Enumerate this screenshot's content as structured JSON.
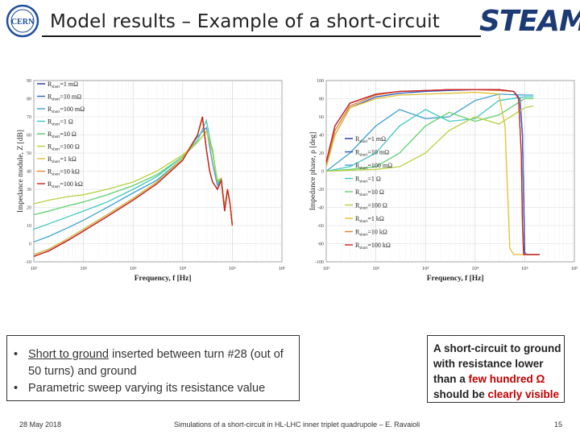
{
  "header": {
    "title": "Model results – Example of a short-circuit",
    "logo_left": "CERN",
    "logo_right": "STEAM"
  },
  "chart_data": [
    {
      "type": "line",
      "ylabel": "Impedance module, Z [dB]",
      "xlabel": "Frequency, f [Hz]",
      "xscale": "log",
      "xlim": [
        10,
        1000000
      ],
      "ylim": [
        -10,
        90
      ],
      "xticks": [
        "10¹",
        "10²",
        "10³",
        "10⁴",
        "10⁵",
        "10⁶"
      ],
      "yticks": [
        -10,
        0,
        10,
        20,
        30,
        40,
        50,
        60,
        70,
        80,
        90
      ],
      "grid": true,
      "legend": "top-left",
      "series": [
        {
          "name": "R_short=1 mΩ",
          "color": "#2030a0",
          "x": [
            10,
            20,
            50,
            100,
            300,
            1000,
            3000,
            10000,
            20000,
            25000,
            30000,
            35000,
            40000,
            50000,
            60000,
            70000,
            80000,
            90000,
            100000
          ],
          "y": [
            -7,
            -4,
            2,
            7,
            15,
            24,
            33,
            46,
            60,
            70,
            52,
            40,
            34,
            30,
            35,
            18,
            30,
            22,
            10
          ]
        },
        {
          "name": "R_short=10 mΩ",
          "color": "#3060c0",
          "x": [
            10,
            20,
            50,
            100,
            300,
            1000,
            3000,
            10000,
            20000,
            25000,
            30000,
            35000,
            40000,
            50000,
            60000,
            70000,
            80000,
            90000,
            100000
          ],
          "y": [
            -6,
            -3,
            3,
            8,
            16,
            25,
            34,
            47,
            60,
            70,
            52,
            40,
            34,
            30,
            35,
            18,
            30,
            22,
            10
          ]
        },
        {
          "name": "R_short=100 mΩ",
          "color": "#40a0d0",
          "x": [
            10,
            20,
            50,
            100,
            300,
            1000,
            3000,
            10000,
            20000,
            30000,
            40000,
            50000,
            60000,
            70000,
            80000,
            90000,
            100000
          ],
          "y": [
            1,
            4,
            9,
            13,
            20,
            28,
            35,
            47,
            59,
            64,
            44,
            32,
            35,
            20,
            30,
            22,
            10
          ]
        },
        {
          "name": "R_short=1 Ω",
          "color": "#40c8c0",
          "x": [
            10,
            20,
            50,
            100,
            300,
            1000,
            3000,
            10000,
            20000,
            30000,
            40000,
            50000,
            60000,
            70000,
            80000,
            90000,
            100000
          ],
          "y": [
            8,
            11,
            15,
            18,
            23,
            30,
            37,
            48,
            57,
            68,
            50,
            33,
            36,
            20,
            30,
            22,
            10
          ]
        },
        {
          "name": "R_short=10 Ω",
          "color": "#60d070",
          "x": [
            10,
            20,
            50,
            100,
            300,
            1000,
            3000,
            10000,
            20000,
            30000,
            40000,
            50000,
            60000,
            70000,
            80000,
            90000,
            100000
          ],
          "y": [
            16,
            18,
            21,
            23,
            27,
            32,
            38,
            48,
            56,
            62,
            52,
            34,
            36,
            20,
            30,
            22,
            10
          ]
        },
        {
          "name": "R_short=100 Ω",
          "color": "#b8d040",
          "x": [
            10,
            20,
            50,
            100,
            300,
            1000,
            3000,
            10000,
            20000,
            30000,
            40000,
            50000,
            60000,
            70000,
            80000,
            90000,
            100000
          ],
          "y": [
            22,
            24,
            26,
            27,
            30,
            34,
            40,
            49,
            56,
            62,
            50,
            35,
            36,
            20,
            30,
            22,
            10
          ]
        },
        {
          "name": "R_short=1 kΩ",
          "color": "#e0c030",
          "x": [
            10,
            20,
            50,
            100,
            300,
            1000,
            3000,
            10000,
            20000,
            25000,
            30000,
            35000,
            40000,
            50000,
            60000,
            70000,
            80000,
            90000,
            100000
          ],
          "y": [
            -6,
            -3,
            3,
            8,
            16,
            25,
            34,
            47,
            60,
            69,
            52,
            40,
            34,
            30,
            35,
            18,
            30,
            22,
            10
          ]
        },
        {
          "name": "R_short=10 kΩ",
          "color": "#e08030",
          "x": [
            10,
            20,
            50,
            100,
            300,
            1000,
            3000,
            10000,
            20000,
            25000,
            30000,
            35000,
            40000,
            50000,
            60000,
            70000,
            80000,
            90000,
            100000
          ],
          "y": [
            -7,
            -4,
            2,
            7,
            15,
            24,
            33,
            46,
            60,
            70,
            52,
            40,
            34,
            30,
            35,
            18,
            30,
            22,
            10
          ]
        },
        {
          "name": "R_short=100 kΩ",
          "color": "#d02020",
          "x": [
            10,
            20,
            50,
            100,
            300,
            1000,
            3000,
            10000,
            20000,
            25000,
            30000,
            35000,
            40000,
            50000,
            60000,
            70000,
            80000,
            90000,
            100000
          ],
          "y": [
            -7,
            -4,
            2,
            7,
            15,
            24,
            33,
            46,
            60,
            70,
            52,
            40,
            34,
            30,
            35,
            18,
            30,
            22,
            10
          ]
        }
      ]
    },
    {
      "type": "line",
      "ylabel": "Impedance phase, ρ [deg]",
      "xlabel": "Frequency, f [Hz]",
      "xscale": "log",
      "xlim": [
        10,
        1000000
      ],
      "ylim": [
        -100,
        100
      ],
      "xticks": [
        "10¹",
        "10²",
        "10³",
        "10⁴",
        "10⁵",
        "10⁶"
      ],
      "yticks": [
        -100,
        -80,
        -60,
        -40,
        -20,
        0,
        20,
        40,
        60,
        80,
        100
      ],
      "grid": true,
      "legend": "center",
      "series": [
        {
          "name": "R_short=1 mΩ",
          "color": "#2030a0",
          "x": [
            10,
            15,
            30,
            100,
            300,
            1000,
            3000,
            10000,
            30000,
            60000,
            80000,
            90000,
            95000,
            100000,
            110000,
            130000,
            200000
          ],
          "y": [
            10,
            50,
            75,
            85,
            88,
            89,
            90,
            90,
            90,
            88,
            80,
            40,
            -30,
            -90,
            -92,
            -92,
            -92
          ]
        },
        {
          "name": "R_short=10 mΩ",
          "color": "#3060c0",
          "x": [
            10,
            15,
            30,
            100,
            300,
            1000,
            3000,
            10000,
            30000,
            60000,
            80000,
            90000,
            95000,
            100000,
            110000,
            130000,
            200000
          ],
          "y": [
            5,
            40,
            70,
            82,
            86,
            88,
            89,
            90,
            90,
            88,
            80,
            40,
            -30,
            -90,
            -92,
            -92,
            -92
          ]
        },
        {
          "name": "R_short=100 mΩ",
          "color": "#40a0d0",
          "x": [
            10,
            30,
            100,
            300,
            1000,
            3000,
            10000,
            30000,
            100000,
            150000
          ],
          "y": [
            0,
            20,
            50,
            68,
            58,
            60,
            78,
            85,
            84,
            84
          ]
        },
        {
          "name": "R_short=1 Ω",
          "color": "#40c8c0",
          "x": [
            10,
            30,
            100,
            300,
            1000,
            3000,
            10000,
            30000,
            100000,
            150000
          ],
          "y": [
            0,
            5,
            20,
            50,
            68,
            55,
            58,
            78,
            82,
            82
          ]
        },
        {
          "name": "R_short=10 Ω",
          "color": "#60d070",
          "x": [
            10,
            30,
            100,
            300,
            1000,
            3000,
            10000,
            30000,
            100000,
            150000
          ],
          "y": [
            0,
            2,
            5,
            20,
            50,
            65,
            55,
            62,
            80,
            80
          ]
        },
        {
          "name": "R_short=100 Ω",
          "color": "#b8d040",
          "x": [
            10,
            30,
            100,
            300,
            1000,
            3000,
            10000,
            30000,
            100000,
            150000
          ],
          "y": [
            0,
            1,
            2,
            5,
            20,
            45,
            60,
            52,
            70,
            72
          ]
        },
        {
          "name": "R_short=1 kΩ",
          "color": "#e0c030",
          "x": [
            10,
            15,
            30,
            100,
            300,
            1000,
            3000,
            10000,
            20000,
            30000,
            40000,
            45000,
            50000,
            60000,
            200000
          ],
          "y": [
            5,
            40,
            70,
            80,
            84,
            85,
            86,
            87,
            86,
            85,
            50,
            -20,
            -85,
            -92,
            -92
          ]
        },
        {
          "name": "R_short=10 kΩ",
          "color": "#e08030",
          "x": [
            10,
            15,
            30,
            100,
            300,
            1000,
            3000,
            10000,
            30000,
            60000,
            75000,
            85000,
            90000,
            95000,
            200000
          ],
          "y": [
            8,
            45,
            72,
            84,
            88,
            89,
            90,
            90,
            89,
            88,
            80,
            20,
            -60,
            -92,
            -92
          ]
        },
        {
          "name": "R_short=100 kΩ",
          "color": "#d02020",
          "x": [
            10,
            15,
            30,
            100,
            300,
            1000,
            3000,
            10000,
            30000,
            60000,
            75000,
            85000,
            90000,
            95000,
            200000
          ],
          "y": [
            10,
            50,
            75,
            85,
            88,
            89,
            90,
            90,
            90,
            88,
            80,
            20,
            -60,
            -92,
            -92
          ]
        }
      ]
    }
  ],
  "bullets": {
    "item1_underlined": "Short to ground",
    "item1_rest": " inserted between turn #28 (out of 50 turns) and ground",
    "item2": "Parametric sweep varying its resistance value"
  },
  "note": {
    "part1": "A short-circuit to ground with resistance lower than a ",
    "part2": "few hundred Ω",
    "part3": " should be ",
    "part4": "clearly visible"
  },
  "footer": {
    "date": "28 May 2018",
    "center": "Simulations of a short-circuit in HL-LHC inner triplet quadrupole – E. Ravaioli",
    "page": "15"
  }
}
